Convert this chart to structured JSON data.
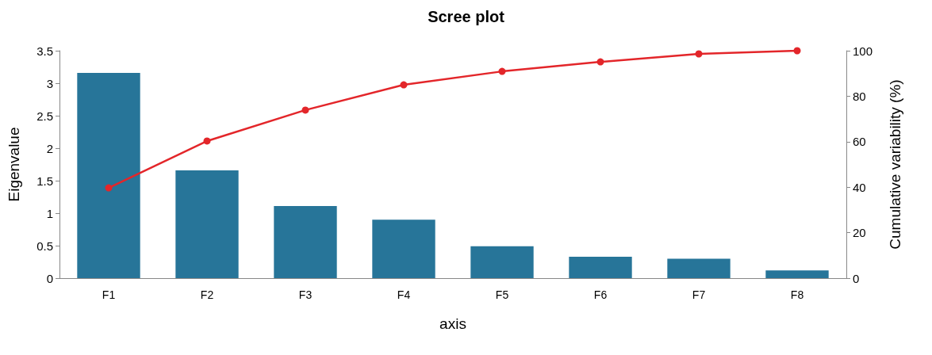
{
  "chart_data": {
    "type": "bar",
    "title": "Scree plot",
    "xlabel": "axis",
    "ylabel": "Eigenvalue",
    "y2label": "Cumulative variability (%)",
    "categories": [
      "F1",
      "F2",
      "F3",
      "F4",
      "F5",
      "F6",
      "F7",
      "F8"
    ],
    "series": [
      {
        "color": "#277599",
        "values": [
          3.16,
          1.66,
          1.11,
          0.9,
          0.49,
          0.33,
          0.3,
          0.12
        ]
      },
      {
        "type": "line",
        "axis": "y2",
        "color": "#e3262a",
        "values": [
          39.7,
          60.3,
          73.9,
          85.0,
          90.9,
          95.1,
          98.6,
          100
        ]
      }
    ],
    "ylim": [
      0,
      3.5
    ],
    "yticks": [
      0,
      0.5,
      1,
      1.5,
      2,
      2.5,
      3,
      3.5
    ],
    "y2lim": [
      0,
      100
    ],
    "y2ticks": [
      0,
      20,
      40,
      60,
      80,
      100
    ],
    "marker": "circle",
    "grid": false
  }
}
